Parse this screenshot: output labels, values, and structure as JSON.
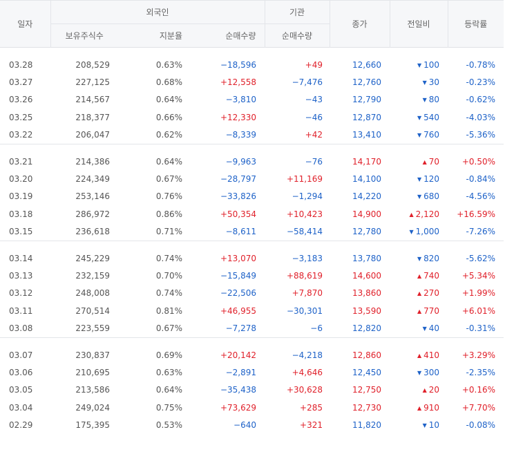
{
  "header": {
    "date": "일자",
    "foreign": "외국인",
    "institution": "기관",
    "close": "종가",
    "diff": "전일비",
    "rate": "등락률",
    "holdings": "보유주식수",
    "ratio": "지분율",
    "foreign_net": "순매수량",
    "inst_net": "순매수량"
  },
  "colors": {
    "up": "#e0202a",
    "down": "#1e62c8"
  },
  "icons": {
    "up": "triangle-up-icon",
    "down": "triangle-down-icon"
  },
  "groups": [
    [
      {
        "date": "03.28",
        "holdings": "208,529",
        "ratio": "0.63%",
        "fnet": "−18,596",
        "inet": "+49",
        "close": "12,660",
        "dir": "down",
        "diff": "100",
        "rate": "-0.78%"
      },
      {
        "date": "03.27",
        "holdings": "227,125",
        "ratio": "0.68%",
        "fnet": "+12,558",
        "inet": "−7,476",
        "close": "12,760",
        "dir": "down",
        "diff": "30",
        "rate": "-0.23%"
      },
      {
        "date": "03.26",
        "holdings": "214,567",
        "ratio": "0.64%",
        "fnet": "−3,810",
        "inet": "−43",
        "close": "12,790",
        "dir": "down",
        "diff": "80",
        "rate": "-0.62%"
      },
      {
        "date": "03.25",
        "holdings": "218,377",
        "ratio": "0.66%",
        "fnet": "+12,330",
        "inet": "−46",
        "close": "12,870",
        "dir": "down",
        "diff": "540",
        "rate": "-4.03%"
      },
      {
        "date": "03.22",
        "holdings": "206,047",
        "ratio": "0.62%",
        "fnet": "−8,339",
        "inet": "+42",
        "close": "13,410",
        "dir": "down",
        "diff": "760",
        "rate": "-5.36%"
      }
    ],
    [
      {
        "date": "03.21",
        "holdings": "214,386",
        "ratio": "0.64%",
        "fnet": "−9,963",
        "inet": "−76",
        "close": "14,170",
        "dir": "up",
        "diff": "70",
        "rate": "+0.50%"
      },
      {
        "date": "03.20",
        "holdings": "224,349",
        "ratio": "0.67%",
        "fnet": "−28,797",
        "inet": "+11,169",
        "close": "14,100",
        "dir": "down",
        "diff": "120",
        "rate": "-0.84%"
      },
      {
        "date": "03.19",
        "holdings": "253,146",
        "ratio": "0.76%",
        "fnet": "−33,826",
        "inet": "−1,294",
        "close": "14,220",
        "dir": "down",
        "diff": "680",
        "rate": "-4.56%"
      },
      {
        "date": "03.18",
        "holdings": "286,972",
        "ratio": "0.86%",
        "fnet": "+50,354",
        "inet": "+10,423",
        "close": "14,900",
        "dir": "up",
        "diff": "2,120",
        "rate": "+16.59%"
      },
      {
        "date": "03.15",
        "holdings": "236,618",
        "ratio": "0.71%",
        "fnet": "−8,611",
        "inet": "−58,414",
        "close": "12,780",
        "dir": "down",
        "diff": "1,000",
        "rate": "-7.26%"
      }
    ],
    [
      {
        "date": "03.14",
        "holdings": "245,229",
        "ratio": "0.74%",
        "fnet": "+13,070",
        "inet": "−3,183",
        "close": "13,780",
        "dir": "down",
        "diff": "820",
        "rate": "-5.62%"
      },
      {
        "date": "03.13",
        "holdings": "232,159",
        "ratio": "0.70%",
        "fnet": "−15,849",
        "inet": "+88,619",
        "close": "14,600",
        "dir": "up",
        "diff": "740",
        "rate": "+5.34%"
      },
      {
        "date": "03.12",
        "holdings": "248,008",
        "ratio": "0.74%",
        "fnet": "−22,506",
        "inet": "+7,870",
        "close": "13,860",
        "dir": "up",
        "diff": "270",
        "rate": "+1.99%"
      },
      {
        "date": "03.11",
        "holdings": "270,514",
        "ratio": "0.81%",
        "fnet": "+46,955",
        "inet": "−30,301",
        "close": "13,590",
        "dir": "up",
        "diff": "770",
        "rate": "+6.01%"
      },
      {
        "date": "03.08",
        "holdings": "223,559",
        "ratio": "0.67%",
        "fnet": "−7,278",
        "inet": "−6",
        "close": "12,820",
        "dir": "down",
        "diff": "40",
        "rate": "-0.31%"
      }
    ],
    [
      {
        "date": "03.07",
        "holdings": "230,837",
        "ratio": "0.69%",
        "fnet": "+20,142",
        "inet": "−4,218",
        "close": "12,860",
        "dir": "up",
        "diff": "410",
        "rate": "+3.29%"
      },
      {
        "date": "03.06",
        "holdings": "210,695",
        "ratio": "0.63%",
        "fnet": "−2,891",
        "inet": "+4,646",
        "close": "12,450",
        "dir": "down",
        "diff": "300",
        "rate": "-2.35%"
      },
      {
        "date": "03.05",
        "holdings": "213,586",
        "ratio": "0.64%",
        "fnet": "−35,438",
        "inet": "+30,628",
        "close": "12,750",
        "dir": "up",
        "diff": "20",
        "rate": "+0.16%"
      },
      {
        "date": "03.04",
        "holdings": "249,024",
        "ratio": "0.75%",
        "fnet": "+73,629",
        "inet": "+285",
        "close": "12,730",
        "dir": "up",
        "diff": "910",
        "rate": "+7.70%"
      },
      {
        "date": "02.29",
        "holdings": "175,395",
        "ratio": "0.53%",
        "fnet": "−640",
        "inet": "+321",
        "close": "11,820",
        "dir": "down",
        "diff": "10",
        "rate": "-0.08%"
      }
    ]
  ]
}
